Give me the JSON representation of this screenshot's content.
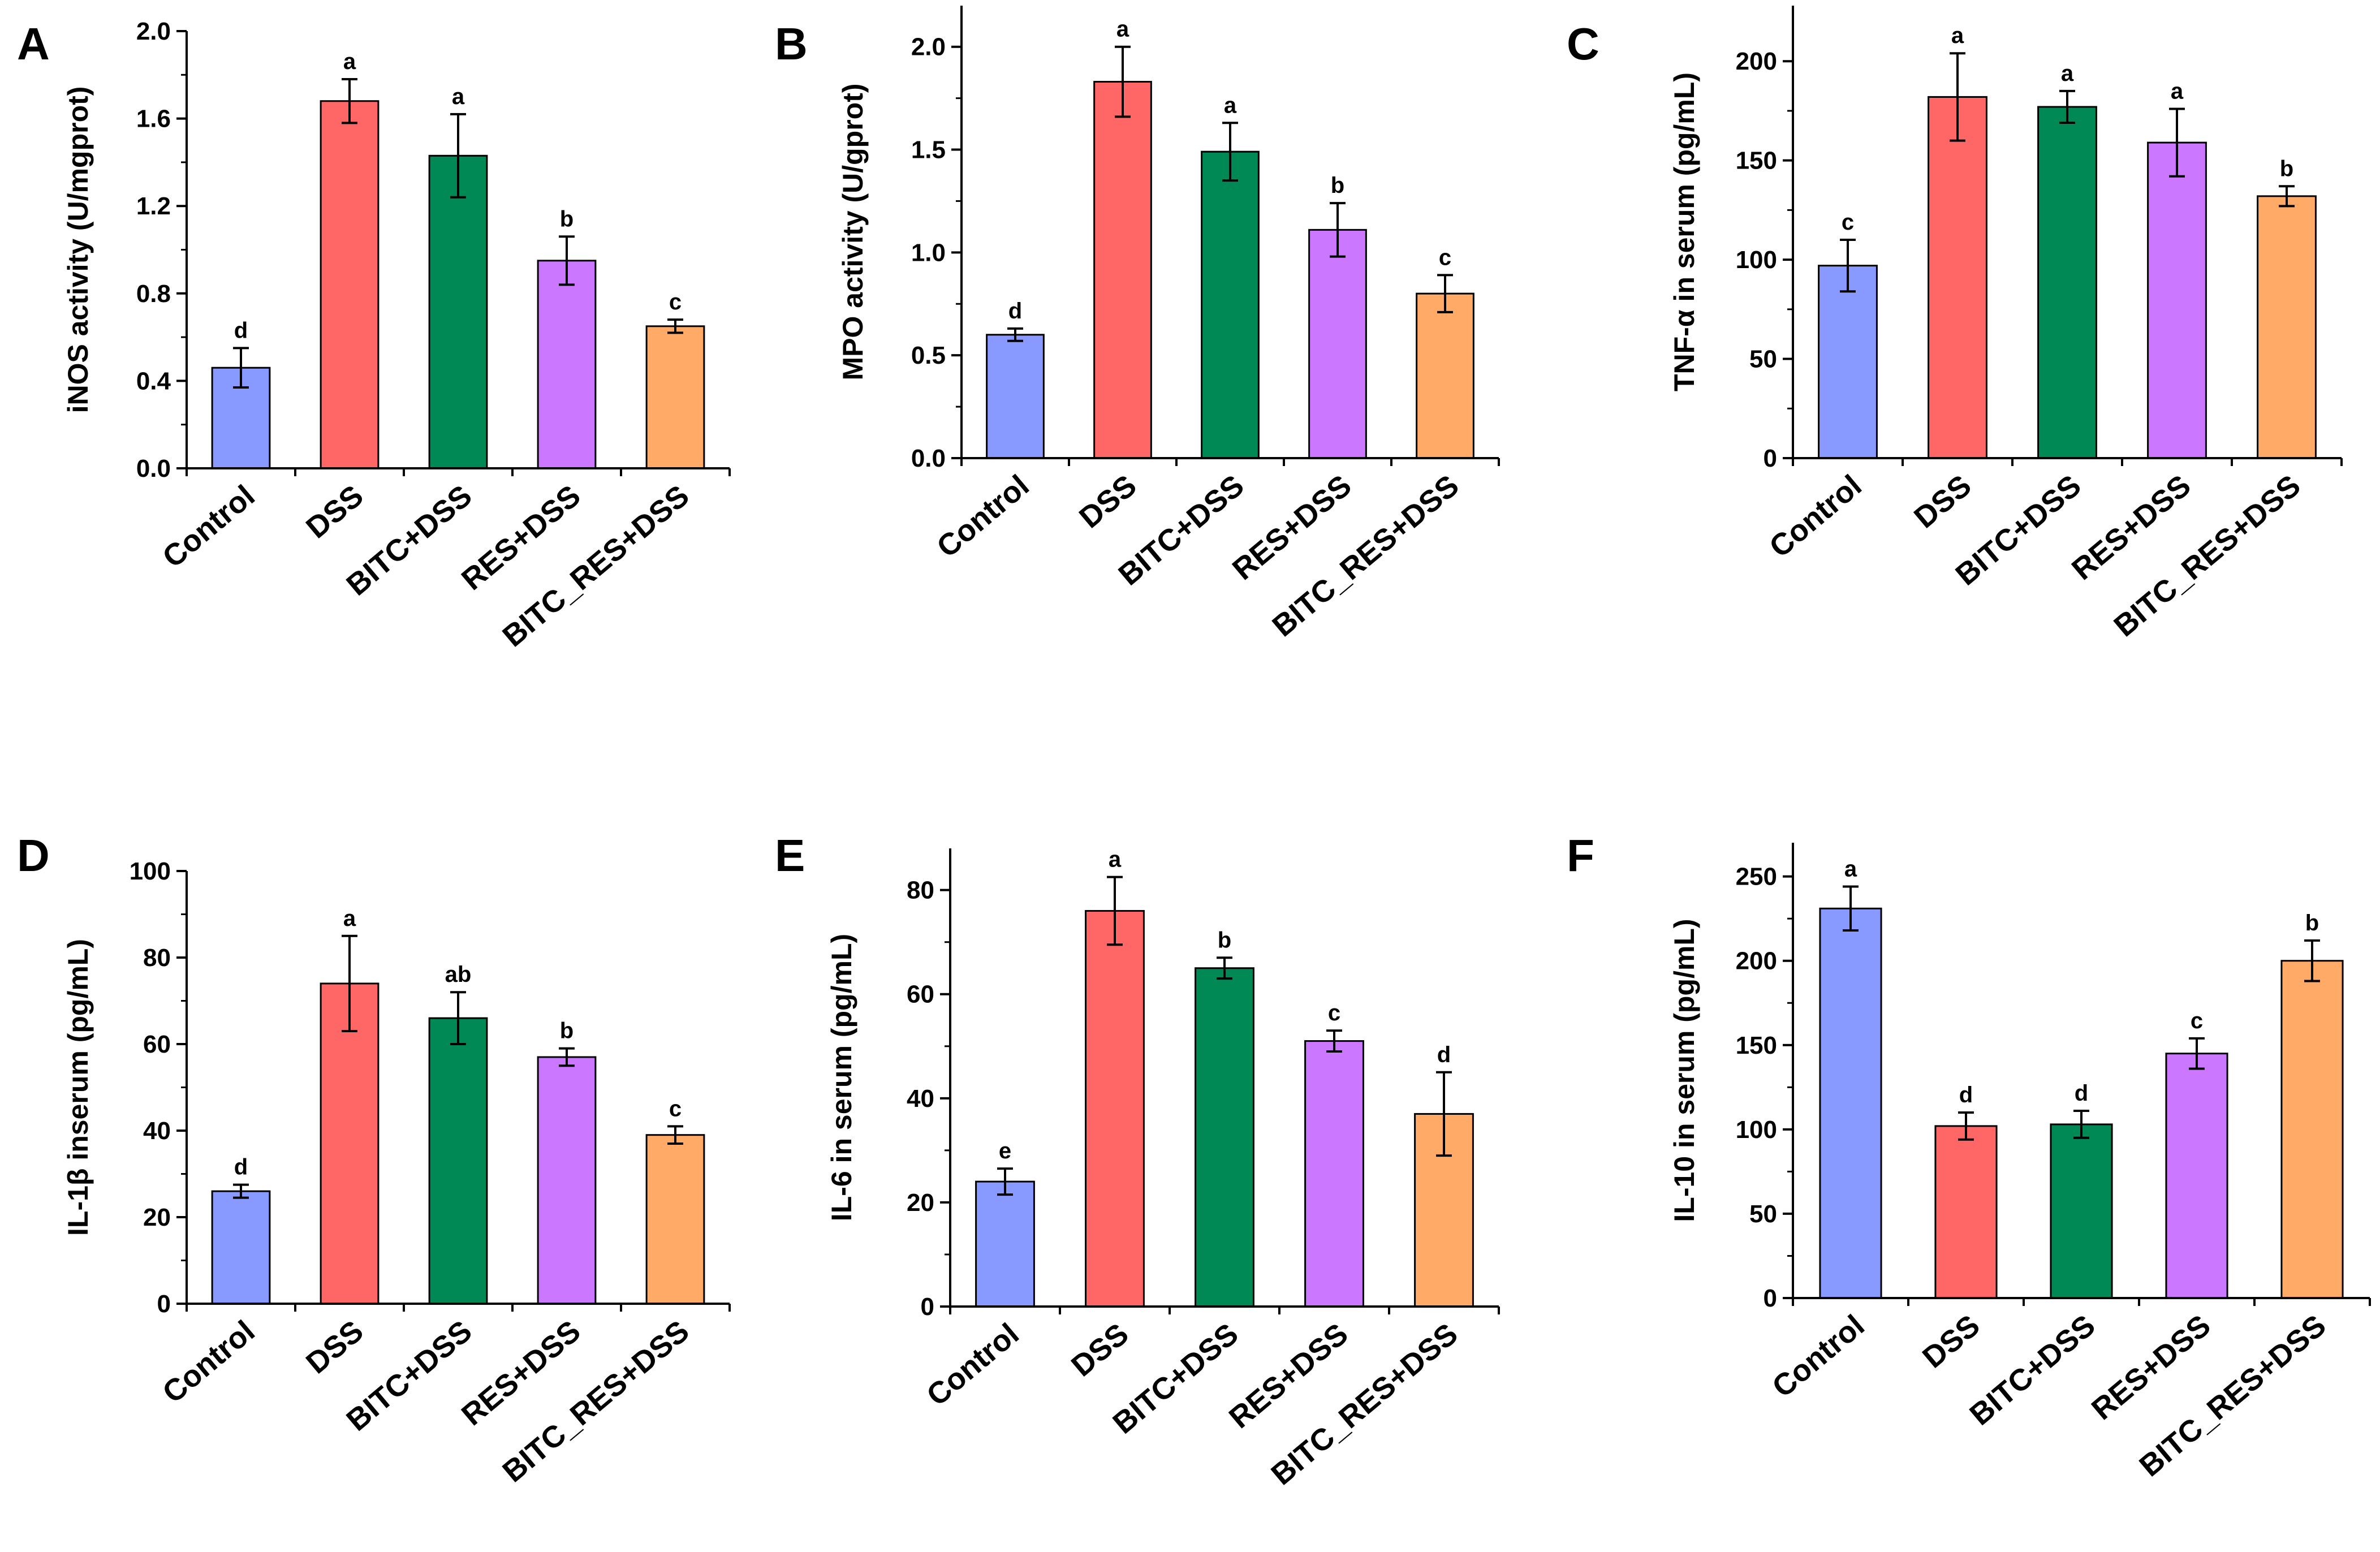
{
  "chart_data": [
    {
      "type": "bar",
      "panel": "A",
      "ylabel": "iNOS activity (U/mgprot)",
      "ylim": [
        0,
        2.0
      ],
      "yticks": [
        "0.0",
        "0.4",
        "0.8",
        "1.2",
        "1.6",
        "2.0"
      ],
      "categories": [
        "Control",
        "DSS",
        "BITC+DSS",
        "RES+DSS",
        "BITC_RES+DSS"
      ],
      "values": [
        0.46,
        1.68,
        1.43,
        0.95,
        0.65
      ],
      "errors": [
        0.09,
        0.1,
        0.19,
        0.11,
        0.03
      ],
      "significance": [
        "d",
        "a",
        "a",
        "b",
        "c"
      ]
    },
    {
      "type": "bar",
      "panel": "B",
      "ylabel": "MPO activity (U/gprot)",
      "ylim": [
        0,
        2.2
      ],
      "yticks": [
        "0.0",
        "0.5",
        "1.0",
        "1.5",
        "2.0"
      ],
      "categories": [
        "Control",
        "DSS",
        "BITC+DSS",
        "RES+DSS",
        "BITC_RES+DSS"
      ],
      "values": [
        0.6,
        1.83,
        1.49,
        1.11,
        0.8
      ],
      "errors": [
        0.03,
        0.17,
        0.14,
        0.13,
        0.09
      ],
      "significance": [
        "d",
        "a",
        "a",
        "b",
        "c"
      ]
    },
    {
      "type": "bar",
      "panel": "C",
      "ylabel": "TNF-α in serum (pg/mL)",
      "ylim": [
        0,
        228
      ],
      "yticks": [
        "0",
        "50",
        "100",
        "150",
        "200"
      ],
      "categories": [
        "Control",
        "DSS",
        "BITC+DSS",
        "RES+DSS",
        "BITC_RES+DSS"
      ],
      "values": [
        97,
        182,
        177,
        159,
        132
      ],
      "errors": [
        13,
        22,
        8,
        17,
        5
      ],
      "significance": [
        "c",
        "a",
        "a",
        "a",
        "b"
      ]
    },
    {
      "type": "bar",
      "panel": "D",
      "ylabel": "IL-1β inserum (pg/mL)",
      "ylim": [
        0,
        100
      ],
      "yticks": [
        "0",
        "20",
        "40",
        "60",
        "80",
        "100"
      ],
      "categories": [
        "Control",
        "DSS",
        "BITC+DSS",
        "RES+DSS",
        "BITC_RES+DSS"
      ],
      "values": [
        26,
        74,
        66,
        57,
        39
      ],
      "errors": [
        1.5,
        11,
        6,
        2,
        2
      ],
      "significance": [
        "d",
        "a",
        "ab",
        "b",
        "c"
      ]
    },
    {
      "type": "bar",
      "panel": "E",
      "ylabel": "IL-6 in serum (pg/mL)",
      "ylim": [
        0,
        88
      ],
      "yticks": [
        "0",
        "20",
        "40",
        "60",
        "80"
      ],
      "categories": [
        "Control",
        "DSS",
        "BITC+DSS",
        "RES+DSS",
        "BITC_RES+DSS"
      ],
      "values": [
        24,
        76,
        65,
        51,
        37
      ],
      "errors": [
        2.5,
        6.5,
        2,
        2,
        8
      ],
      "significance": [
        "e",
        "a",
        "b",
        "c",
        "d"
      ]
    },
    {
      "type": "bar",
      "panel": "F",
      "ylabel": "IL-10 in serum (pg/mL)",
      "ylim": [
        0,
        270
      ],
      "yticks": [
        "0",
        "50",
        "100",
        "150",
        "200",
        "250"
      ],
      "categories": [
        "Control",
        "DSS",
        "BITC+DSS",
        "RES+DSS",
        "BITC_RES+DSS"
      ],
      "values": [
        231,
        102,
        103,
        145,
        200
      ],
      "errors": [
        13,
        8,
        8,
        9,
        12
      ],
      "significance": [
        "a",
        "d",
        "d",
        "c",
        "b"
      ]
    }
  ],
  "colors": {
    "bars": [
      "#8899ff",
      "#ff6666",
      "#008855",
      "#cc77ff",
      "#ffaa66"
    ],
    "axis": "#000000"
  }
}
